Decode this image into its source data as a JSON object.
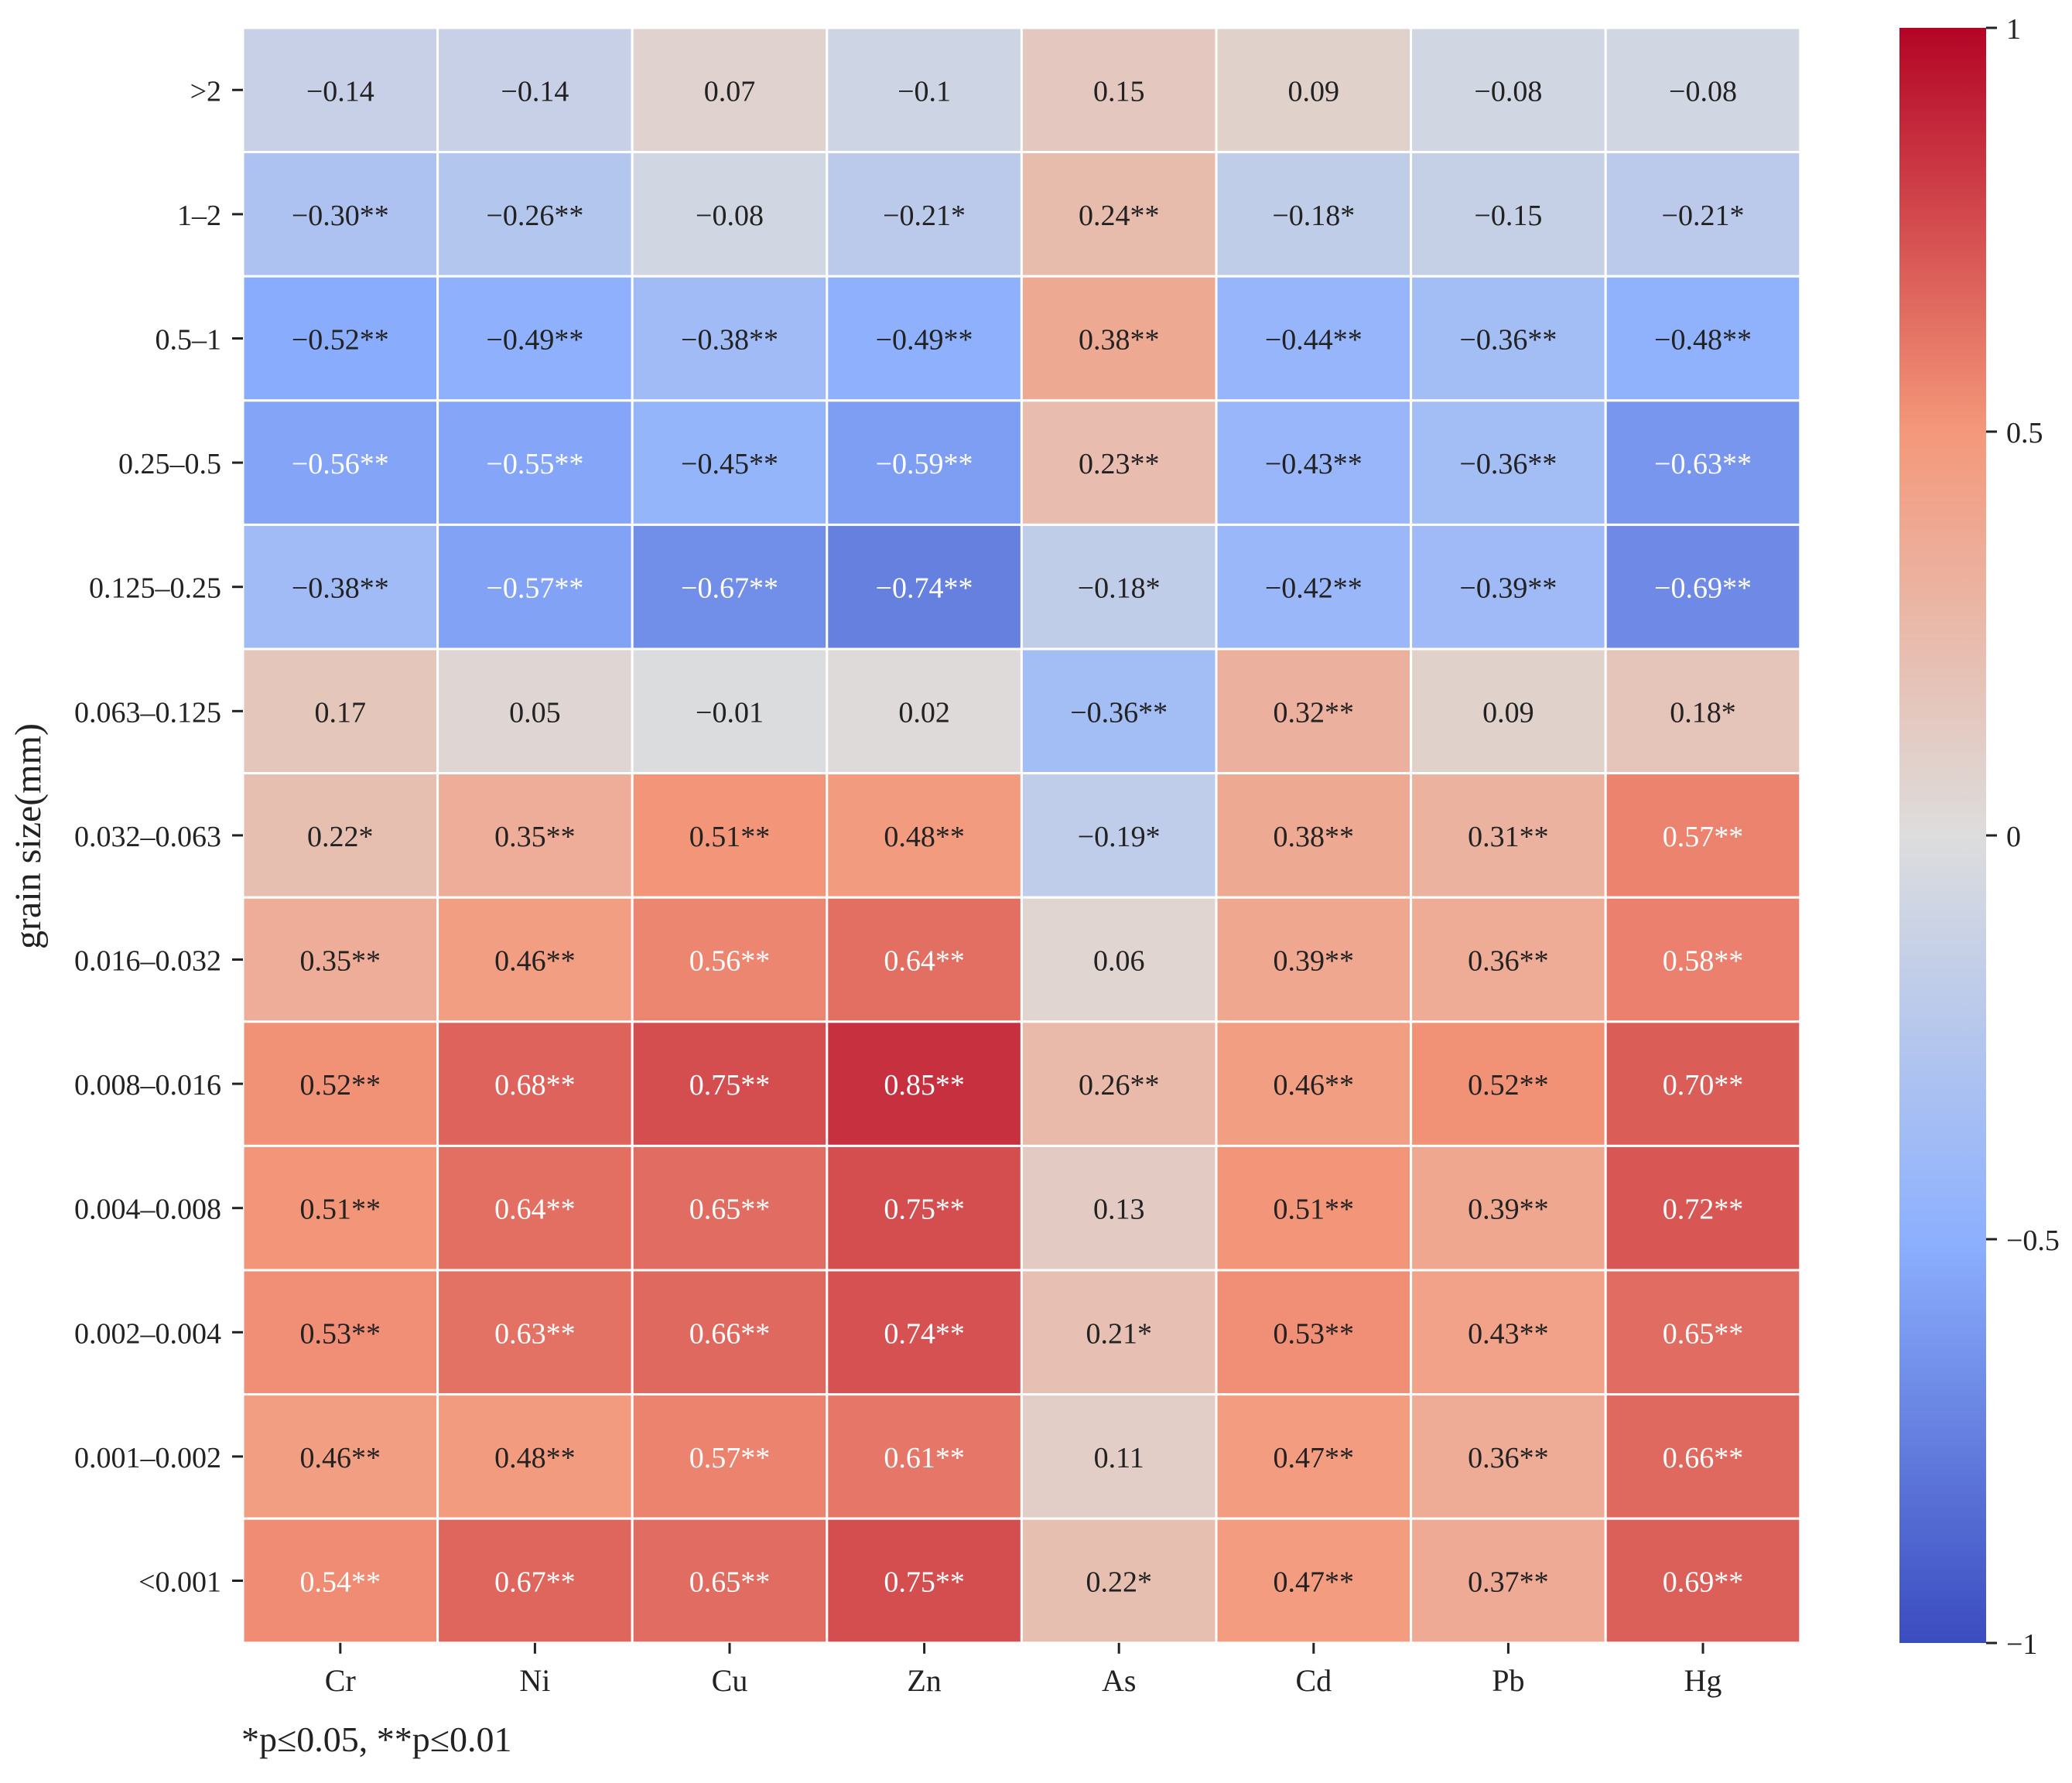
{
  "chart_data": {
    "type": "heatmap",
    "title": "",
    "xlabel": "",
    "ylabel": "grain size(mm)",
    "columns": [
      "Cr",
      "Ni",
      "Cu",
      "Zn",
      "As",
      "Cd",
      "Pb",
      "Hg"
    ],
    "rows": [
      ">2",
      "1–2",
      "0.5–1",
      "0.25–0.5",
      "0.125–0.25",
      "0.063–0.125",
      "0.032–0.063",
      "0.016–0.032",
      "0.008–0.016",
      "0.004–0.008",
      "0.002–0.004",
      "0.001–0.002",
      "<0.001"
    ],
    "values": [
      [
        -0.14,
        -0.14,
        0.07,
        -0.1,
        0.15,
        0.09,
        -0.08,
        -0.08
      ],
      [
        -0.3,
        -0.26,
        -0.08,
        -0.21,
        0.24,
        -0.18,
        -0.15,
        -0.21
      ],
      [
        -0.52,
        -0.49,
        -0.38,
        -0.49,
        0.38,
        -0.44,
        -0.36,
        -0.48
      ],
      [
        -0.56,
        -0.55,
        -0.45,
        -0.59,
        0.23,
        -0.43,
        -0.36,
        -0.63
      ],
      [
        -0.38,
        -0.57,
        -0.67,
        -0.74,
        -0.18,
        -0.42,
        -0.39,
        -0.69
      ],
      [
        0.17,
        0.05,
        -0.01,
        0.02,
        -0.36,
        0.32,
        0.09,
        0.18
      ],
      [
        0.22,
        0.35,
        0.51,
        0.48,
        -0.19,
        0.38,
        0.31,
        0.57
      ],
      [
        0.35,
        0.46,
        0.56,
        0.64,
        0.06,
        0.39,
        0.36,
        0.58
      ],
      [
        0.52,
        0.68,
        0.75,
        0.85,
        0.26,
        0.46,
        0.52,
        0.7
      ],
      [
        0.51,
        0.64,
        0.65,
        0.75,
        0.13,
        0.51,
        0.39,
        0.72
      ],
      [
        0.53,
        0.63,
        0.66,
        0.74,
        0.21,
        0.53,
        0.43,
        0.65
      ],
      [
        0.46,
        0.48,
        0.57,
        0.61,
        0.11,
        0.47,
        0.36,
        0.66
      ],
      [
        0.54,
        0.67,
        0.65,
        0.75,
        0.22,
        0.47,
        0.37,
        0.69
      ]
    ],
    "annotations": [
      [
        "−0.14",
        "−0.14",
        "0.07",
        "−0.1",
        "0.15",
        "0.09",
        "−0.08",
        "−0.08"
      ],
      [
        "−0.30**",
        "−0.26**",
        "−0.08",
        "−0.21*",
        "0.24**",
        "−0.18*",
        "−0.15",
        "−0.21*"
      ],
      [
        "−0.52**",
        "−0.49**",
        "−0.38**",
        "−0.49**",
        "0.38**",
        "−0.44**",
        "−0.36**",
        "−0.48**"
      ],
      [
        "−0.56**",
        "−0.55**",
        "−0.45**",
        "−0.59**",
        "0.23**",
        "−0.43**",
        "−0.36**",
        "−0.63**"
      ],
      [
        "−0.38**",
        "−0.57**",
        "−0.67**",
        "−0.74**",
        "−0.18*",
        "−0.42**",
        "−0.39**",
        "−0.69**"
      ],
      [
        "0.17",
        "0.05",
        "−0.01",
        "0.02",
        "−0.36**",
        "0.32**",
        "0.09",
        "0.18*"
      ],
      [
        "0.22*",
        "0.35**",
        "0.51**",
        "0.48**",
        "−0.19*",
        "0.38**",
        "0.31**",
        "0.57**"
      ],
      [
        "0.35**",
        "0.46**",
        "0.56**",
        "0.64**",
        "0.06",
        "0.39**",
        "0.36**",
        "0.58**"
      ],
      [
        "0.52**",
        "0.68**",
        "0.75**",
        "0.85**",
        "0.26**",
        "0.46**",
        "0.52**",
        "0.70**"
      ],
      [
        "0.51**",
        "0.64**",
        "0.65**",
        "0.75**",
        "0.13",
        "0.51**",
        "0.39**",
        "0.72**"
      ],
      [
        "0.53**",
        "0.63**",
        "0.66**",
        "0.74**",
        "0.21*",
        "0.53**",
        "0.43**",
        "0.65**"
      ],
      [
        "0.46**",
        "0.48**",
        "0.57**",
        "0.61**",
        "0.11",
        "0.47**",
        "0.36**",
        "0.66**"
      ],
      [
        "0.54**",
        "0.67**",
        "0.65**",
        "0.75**",
        "0.22*",
        "0.47**",
        "0.37**",
        "0.69**"
      ]
    ],
    "colorbar": {
      "vmin": -1,
      "vmax": 1,
      "ticks": [
        1,
        0.5,
        0,
        -0.5,
        -1
      ],
      "tick_labels": [
        "1",
        "0.5",
        "0",
        "−0.5",
        "−1"
      ],
      "colormap": "coolwarm"
    },
    "footnote": "*p≤0.05, **p≤0.01"
  }
}
